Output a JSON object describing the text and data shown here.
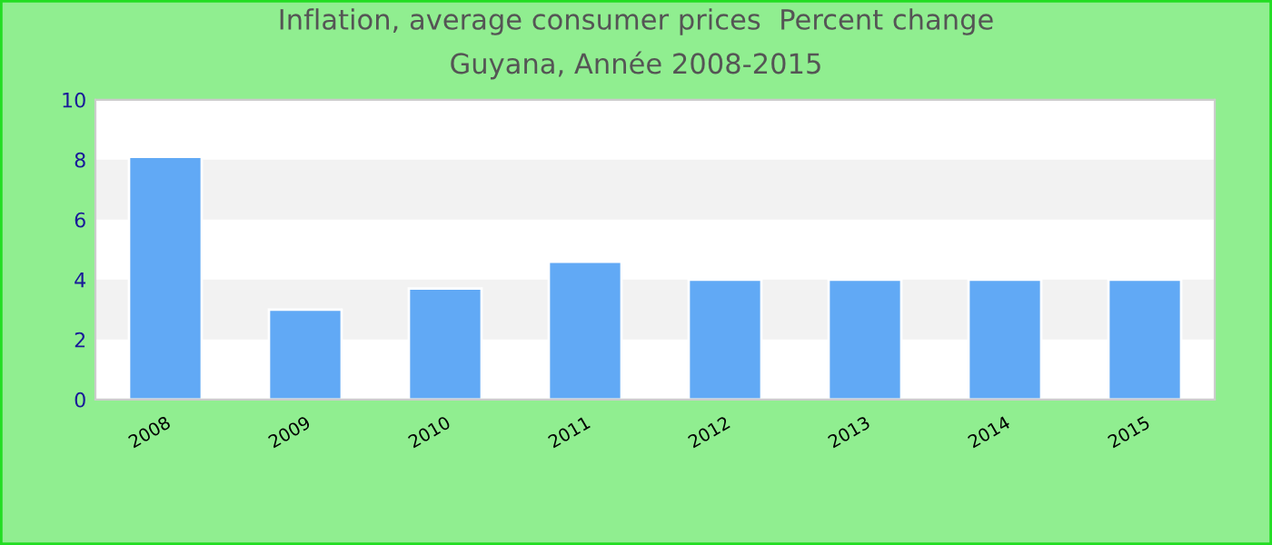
{
  "chart_data": {
    "type": "bar",
    "title": "Inflation, average consumer prices  Percent change",
    "subtitle": "Guyana, Année 2008-2015",
    "categories": [
      "2008",
      "2009",
      "2010",
      "2011",
      "2012",
      "2013",
      "2014",
      "2015"
    ],
    "values": [
      8.1,
      3.0,
      3.7,
      4.6,
      4.0,
      4.0,
      4.0,
      4.0
    ],
    "color": "#61a9f5",
    "ylim": [
      0,
      10
    ],
    "yticks": [
      0,
      2,
      4,
      6,
      8,
      10
    ],
    "bands": [
      {
        "axis": "y",
        "from": 2,
        "to": 4,
        "color": "#f2f2f2"
      },
      {
        "axis": "y",
        "from": 6,
        "to": 8,
        "color": "#f2f2f2"
      }
    ],
    "grid": false,
    "legend": false
  }
}
